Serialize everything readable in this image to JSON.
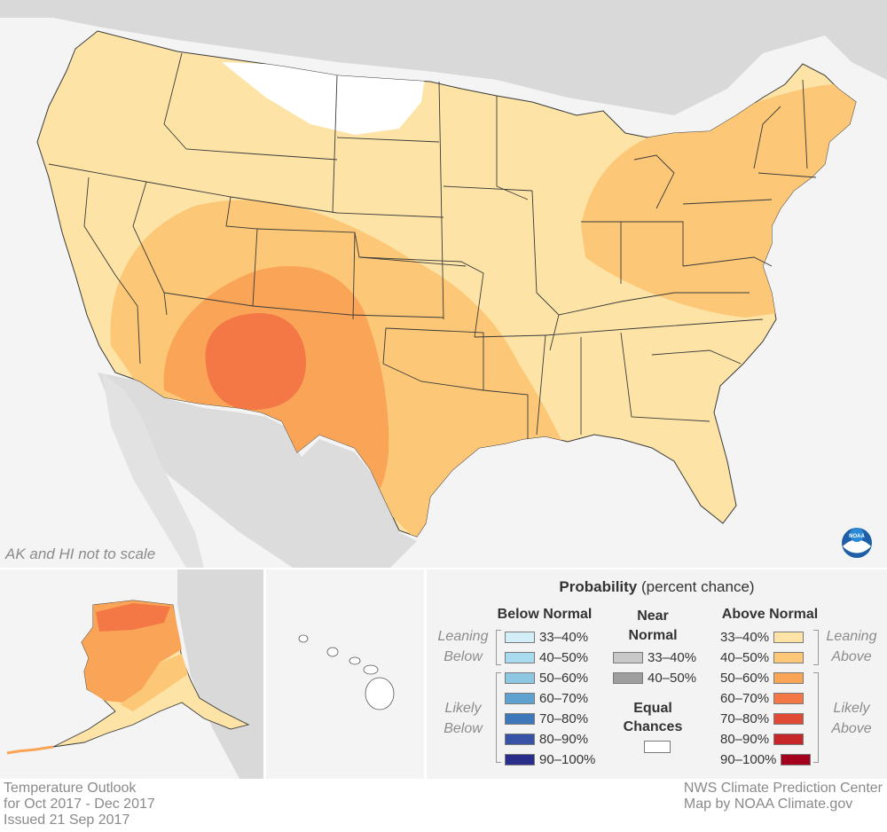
{
  "map": {
    "scale_note": "AK and HI not to scale",
    "logo_text": "NOAA"
  },
  "legend": {
    "title_bold": "Probability",
    "title_rest": "(percent chance)",
    "below_normal": {
      "heading": "Below Normal",
      "leaning_label": "Leaning Below",
      "likely_label": "Likely Below",
      "items": [
        {
          "label": "33–40%",
          "color": "#d3eef7"
        },
        {
          "label": "40–50%",
          "color": "#a9dbee"
        },
        {
          "label": "50–60%",
          "color": "#8ec7e2"
        },
        {
          "label": "60–70%",
          "color": "#5fa2d0"
        },
        {
          "label": "70–80%",
          "color": "#3e78ba"
        },
        {
          "label": "80–90%",
          "color": "#3653a5"
        },
        {
          "label": "90–100%",
          "color": "#2a2e8a"
        }
      ]
    },
    "near_normal": {
      "heading_line1": "Near",
      "heading_line2": "Normal",
      "items": [
        {
          "label": "33–40%",
          "color": "#c8c8c8"
        },
        {
          "label": "40–50%",
          "color": "#9e9e9e"
        }
      ]
    },
    "equal_chances": {
      "line1": "Equal",
      "line2": "Chances",
      "color": "#ffffff"
    },
    "above_normal": {
      "heading": "Above Normal",
      "leaning_label": "Leaning Above",
      "likely_label": "Likely Above",
      "items": [
        {
          "label": "33–40%",
          "color": "#fde4a6"
        },
        {
          "label": "40–50%",
          "color": "#fcc877"
        },
        {
          "label": "50–60%",
          "color": "#f9a456"
        },
        {
          "label": "60–70%",
          "color": "#f47846"
        },
        {
          "label": "70–80%",
          "color": "#e04a34"
        },
        {
          "label": "80–90%",
          "color": "#c8272a"
        },
        {
          "label": "90–100%",
          "color": "#a4001d"
        }
      ]
    }
  },
  "footer": {
    "left": [
      "Temperature Outlook",
      "for Oct 2017 - Dec 2017",
      "Issued 21 Sep 2017"
    ],
    "right": [
      "NWS Climate Prediction Center",
      "Map by NOAA Climate.gov"
    ]
  }
}
